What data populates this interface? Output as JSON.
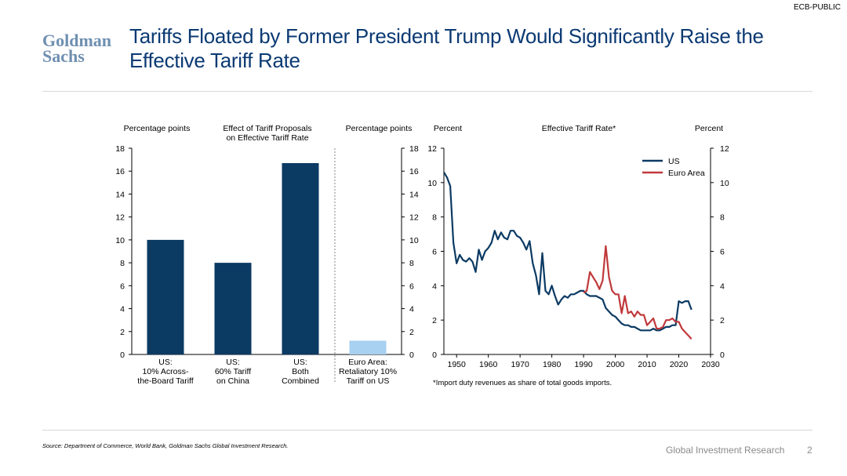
{
  "header": {
    "classification": "ECB-PUBLIC",
    "logo_line1": "Goldman",
    "logo_line2": "Sachs",
    "title": "Tariffs Floated by Former President Trump Would Significantly Raise the Effective Tariff Rate"
  },
  "footer": {
    "source": "Source: Department of Commerce, World Bank, Goldman Sachs Global Investment Research.",
    "label": "Global Investment Research",
    "page": "2"
  },
  "colors": {
    "navy": "#0b3a63",
    "light_blue": "#a8d0f0",
    "red": "#c0393b",
    "title": "#0b3a73"
  },
  "chart_data": [
    {
      "type": "bar",
      "title": "Effect of Tariff Proposals on Effective Tariff Rate",
      "title_lines": [
        "Effect of Tariff Proposals",
        "on Effective Tariff Rate"
      ],
      "ylabel_left": "Percentage points",
      "ylabel_right": "Percentage points",
      "ylim": [
        0,
        18
      ],
      "yticks": [
        0,
        2,
        4,
        6,
        8,
        10,
        12,
        14,
        16,
        18
      ],
      "categories": [
        [
          "US:",
          "10% Across-",
          "the-Board Tariff"
        ],
        [
          "US:",
          "60% Tariff",
          "on China"
        ],
        [
          "US:",
          "Both",
          "Combined"
        ],
        [
          "Euro Area:",
          "Retaliatory 10%",
          "Tariff on US"
        ]
      ],
      "values": [
        10.0,
        8.0,
        16.7,
        1.2
      ],
      "bar_colors": [
        "#0b3a63",
        "#0b3a63",
        "#0b3a63",
        "#a8d0f0"
      ]
    },
    {
      "type": "line",
      "title": "Effective Tariff Rate*",
      "ylabel_left": "Percent",
      "ylabel_right": "Percent",
      "ylim": [
        0,
        12
      ],
      "yticks": [
        0,
        2,
        4,
        6,
        8,
        10,
        12
      ],
      "xlim": [
        1946,
        2030
      ],
      "xticks": [
        1950,
        1960,
        1970,
        1980,
        1990,
        2000,
        2010,
        2020,
        2030
      ],
      "footnote": "*Import duty revenues as share of total goods imports.",
      "series": [
        {
          "name": "US",
          "color": "#0b3a63",
          "x": [
            1946,
            1947,
            1948,
            1949,
            1950,
            1951,
            1952,
            1953,
            1954,
            1955,
            1956,
            1957,
            1958,
            1959,
            1960,
            1961,
            1962,
            1963,
            1964,
            1965,
            1966,
            1967,
            1968,
            1969,
            1970,
            1971,
            1972,
            1973,
            1974,
            1975,
            1976,
            1977,
            1978,
            1979,
            1980,
            1981,
            1982,
            1983,
            1984,
            1985,
            1986,
            1987,
            1988,
            1989,
            1990,
            1991,
            1992,
            1993,
            1994,
            1995,
            1996,
            1997,
            1998,
            1999,
            2000,
            2001,
            2002,
            2003,
            2004,
            2005,
            2006,
            2007,
            2008,
            2009,
            2010,
            2011,
            2012,
            2013,
            2014,
            2015,
            2016,
            2017,
            2018,
            2019,
            2020,
            2021,
            2022,
            2023,
            2024
          ],
          "values": [
            10.6,
            10.3,
            9.8,
            6.5,
            5.3,
            5.8,
            5.5,
            5.4,
            5.6,
            5.4,
            4.8,
            6.1,
            5.5,
            6.0,
            6.2,
            6.5,
            7.2,
            6.7,
            7.1,
            6.8,
            6.7,
            7.2,
            7.2,
            6.9,
            6.8,
            6.5,
            6.1,
            6.6,
            5.3,
            4.6,
            3.5,
            5.9,
            3.7,
            3.5,
            4.0,
            3.4,
            2.9,
            3.2,
            3.4,
            3.3,
            3.5,
            3.5,
            3.6,
            3.7,
            3.7,
            3.5,
            3.4,
            3.4,
            3.4,
            3.3,
            3.2,
            2.7,
            2.5,
            2.3,
            2.2,
            2.0,
            1.8,
            1.7,
            1.7,
            1.6,
            1.6,
            1.5,
            1.4,
            1.4,
            1.4,
            1.4,
            1.5,
            1.4,
            1.4,
            1.5,
            1.6,
            1.6,
            1.7,
            1.7,
            3.1,
            3.0,
            3.1,
            3.1,
            2.6
          ]
        },
        {
          "name": "Euro Area",
          "color": "#c0393b",
          "x": [
            1990,
            1991,
            1992,
            1993,
            1994,
            1995,
            1996,
            1997,
            1998,
            1999,
            2000,
            2001,
            2002,
            2003,
            2004,
            2005,
            2006,
            2007,
            2008,
            2009,
            2010,
            2011,
            2012,
            2013,
            2014,
            2015,
            2016,
            2017,
            2018,
            2019,
            2020,
            2021,
            2022,
            2023,
            2024
          ],
          "values": [
            3.6,
            3.7,
            4.8,
            4.5,
            4.2,
            3.8,
            4.3,
            6.3,
            4.5,
            3.7,
            3.5,
            3.5,
            2.4,
            3.4,
            2.4,
            2.5,
            2.2,
            2.5,
            2.3,
            2.3,
            1.7,
            1.9,
            2.1,
            1.5,
            1.5,
            1.6,
            2.0,
            2.0,
            2.1,
            1.9,
            1.9,
            1.5,
            1.3,
            1.1,
            0.9
          ]
        }
      ]
    }
  ]
}
